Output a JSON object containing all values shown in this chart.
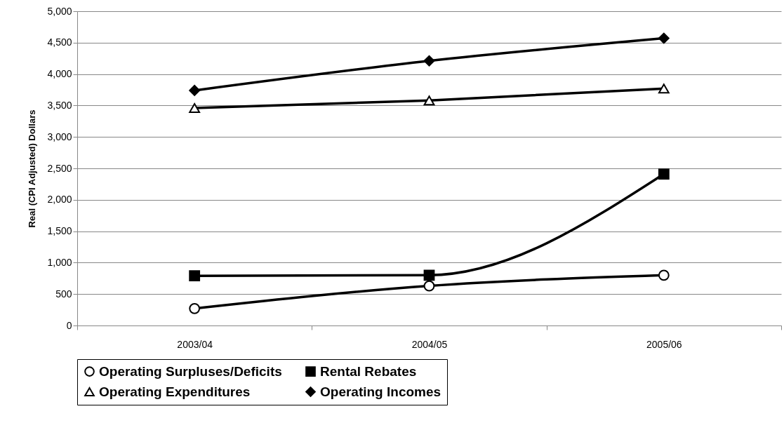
{
  "chart_data": {
    "type": "line",
    "ylabel": "Real (CPI Adjusted) Dollars",
    "categories": [
      "2003/04",
      "2004/05",
      "2005/06"
    ],
    "series": [
      {
        "name": "Operating Surpluses/Deficits",
        "color": "#000000",
        "marker": "circle",
        "values": [
          270,
          630,
          800
        ]
      },
      {
        "name": "Rental Rebates",
        "color": "#000000",
        "marker": "square",
        "values": [
          790,
          800,
          2410
        ]
      },
      {
        "name": "Operating Expenditures",
        "color": "#000000",
        "marker": "triangle",
        "values": [
          3460,
          3580,
          3770
        ]
      },
      {
        "name": "Operating Incomes",
        "color": "#000000",
        "marker": "diamond",
        "values": [
          3740,
          4210,
          4570
        ]
      }
    ],
    "ylim": [
      0,
      5000
    ],
    "yticks": [
      0,
      500,
      {
        "value": 1000,
        "label": "1,000"
      },
      {
        "value": 1500,
        "label": "1,500"
      },
      {
        "value": 2000,
        "label": "2,000"
      },
      {
        "value": 2500,
        "label": "2,500"
      },
      {
        "value": 3000,
        "label": "3,000"
      },
      {
        "value": 3500,
        "label": "3,500"
      },
      {
        "value": 4000,
        "label": "4,000"
      },
      {
        "value": 4500,
        "label": "4,500"
      },
      {
        "value": 5000,
        "label": "5,000"
      }
    ],
    "grid": "y",
    "legend": "bottom",
    "line_style": "solid"
  }
}
